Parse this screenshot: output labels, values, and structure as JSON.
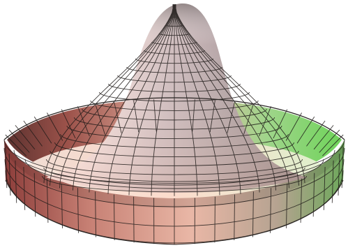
{
  "figure": {
    "subject": "mexican-hat-surface",
    "background": "#ffffff",
    "colors": {
      "peak_light": "#f4eef4",
      "peak_dark": "#3a3433",
      "left_red": "#8e3f3c",
      "left_salmon": "#f3b5a7",
      "rim_rose": "#c07c72",
      "right_green": "#7fe06a",
      "right_green_dark": "#4a8c40",
      "mesh_line": "#1e1a18"
    },
    "style": "3d-shaded-surface-with-mesh-grid"
  }
}
